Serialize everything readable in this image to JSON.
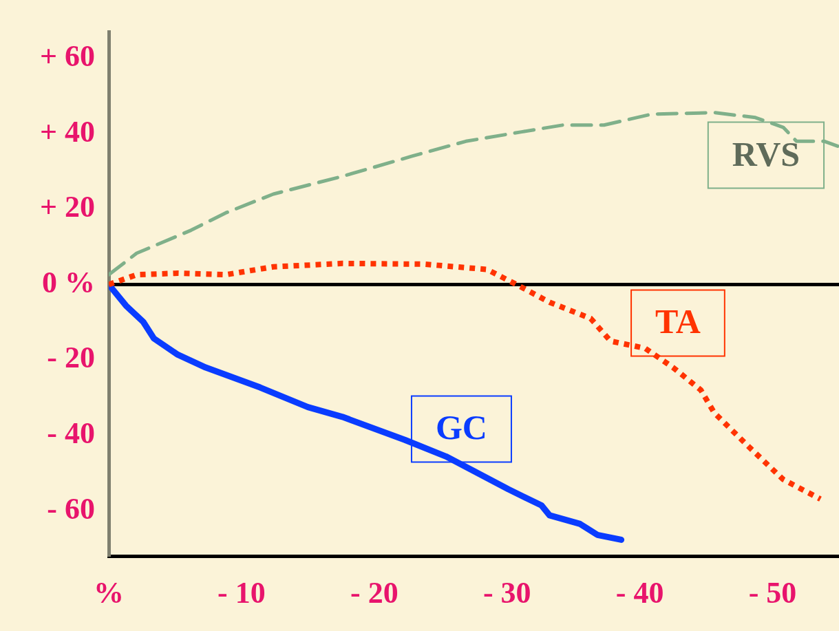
{
  "chart_data": {
    "type": "line",
    "grid": false,
    "legend": false,
    "xlim": [
      0,
      -55
    ],
    "xticks": [
      {
        "value": 0,
        "label": "%"
      },
      {
        "value": -10,
        "label": "- 10"
      },
      {
        "value": -20,
        "label": "- 20"
      },
      {
        "value": -30,
        "label": "- 30"
      },
      {
        "value": -40,
        "label": "- 40"
      },
      {
        "value": -50,
        "label": "- 50"
      }
    ],
    "ylim": [
      -72,
      67
    ],
    "yticks": [
      {
        "value": -60,
        "label": "- 60"
      },
      {
        "value": -40,
        "label": "- 40"
      },
      {
        "value": -20,
        "label": "- 20"
      },
      {
        "value": 0,
        "label": "0 %"
      },
      {
        "value": 20,
        "label": "+ 20"
      },
      {
        "value": 40,
        "label": "+ 40"
      },
      {
        "value": 60,
        "label": "+ 60"
      }
    ],
    "ref_lines": [
      {
        "axis": "y",
        "value": 0,
        "color": "#000000"
      }
    ],
    "series": [
      {
        "name": "RVS",
        "color": "#7fb08a",
        "line_style": "dashed",
        "x": [
          0,
          -2.1,
          -6.2,
          -8.8,
          -12.4,
          -17.6,
          -22.8,
          -26.9,
          -31.1,
          -34.2,
          -37.3,
          -40.9,
          -45.6,
          -48.7,
          -50.8,
          -51.8,
          -53.9,
          -54.9
        ],
        "values": [
          2.6,
          8.3,
          14.4,
          19,
          24,
          28.7,
          34,
          38,
          40.5,
          42.3,
          42.3,
          45.2,
          45.6,
          44.3,
          41.7,
          38,
          38,
          36.7
        ]
      },
      {
        "name": "TA",
        "color": "#ff3300",
        "line_style": "dotted",
        "x": [
          0,
          -2.1,
          -5.2,
          -8.8,
          -12.4,
          -17.6,
          -23.8,
          -28.5,
          -30.6,
          -33.2,
          -36.3,
          -37.8,
          -40.4,
          -42.5,
          -44.6,
          -45.6,
          -48.2,
          -50.8,
          -53.6
        ],
        "values": [
          0,
          2.6,
          3,
          2.6,
          4.7,
          5.6,
          5.4,
          4,
          0.2,
          -4.7,
          -9,
          -15,
          -16.9,
          -22,
          -28,
          -34,
          -43,
          -51.7,
          -56.9
        ]
      },
      {
        "name": "GC",
        "color": "#0a3cff",
        "line_style": "solid",
        "x": [
          0,
          -1.3,
          -2.6,
          -3.4,
          -5.2,
          -7.3,
          -11.4,
          -15,
          -17.6,
          -22.3,
          -25.4,
          -30.1,
          -32.6,
          -33.2,
          -35.5,
          -36.8,
          -38.6
        ],
        "values": [
          0,
          -5.6,
          -9.9,
          -14.3,
          -18.6,
          -22,
          -27.3,
          -32.5,
          -35.1,
          -41.2,
          -45.6,
          -54.3,
          -58.6,
          -61.2,
          -63.5,
          -66.4,
          -67.7
        ]
      }
    ]
  }
}
